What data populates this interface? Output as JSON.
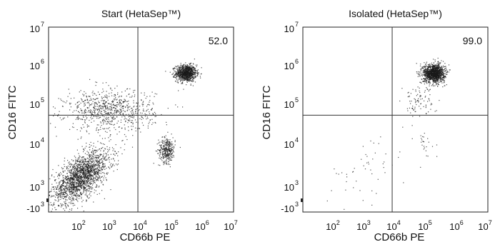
{
  "chart_data": [
    {
      "type": "scatter",
      "title": "Start (HetaSep™)",
      "xlabel": "CD66b PE",
      "ylabel": "CD16 FITC",
      "x_scale": "biexponential",
      "y_scale": "biexponential",
      "x_ticks": [
        {
          "base": "10",
          "exp": "2"
        },
        {
          "base": "10",
          "exp": "3"
        },
        {
          "base": "10",
          "exp": "4"
        },
        {
          "base": "10",
          "exp": "5"
        },
        {
          "base": "10",
          "exp": "6"
        },
        {
          "base": "10",
          "exp": "7"
        }
      ],
      "y_ticks": [
        {
          "base": "-10",
          "exp": "3"
        },
        {
          "base": "10",
          "exp": "3"
        },
        {
          "base": "10",
          "exp": "4"
        },
        {
          "base": "10",
          "exp": "5"
        },
        {
          "base": "10",
          "exp": "6"
        },
        {
          "base": "10",
          "exp": "7"
        }
      ],
      "xlim_log10": [
        1.2,
        7
      ],
      "ylim_log10": [
        2.55,
        7
      ],
      "gate": {
        "x_log10": 4.0,
        "y_log10": 4.88
      },
      "quadrant_label": "52.0",
      "populations": [
        {
          "x_log10": 5.5,
          "y_log10": 5.9,
          "spread": [
            0.16,
            0.1
          ],
          "count": 1000
        },
        {
          "x_log10": 4.9,
          "y_log10": 4.05,
          "spread": [
            0.13,
            0.15
          ],
          "count": 330
        },
        {
          "x_log10": 2.2,
          "y_log10": 3.4,
          "spread": [
            0.45,
            0.25
          ],
          "count": 1900
        },
        {
          "x_log10": 3.1,
          "y_log10": 5.0,
          "spread": [
            0.7,
            0.25
          ],
          "count": 800
        }
      ]
    },
    {
      "type": "scatter",
      "title": "Isolated (HetaSep™)",
      "xlabel": "CD66b PE",
      "ylabel": "CD16 FITC",
      "x_scale": "biexponential",
      "y_scale": "biexponential",
      "x_ticks": [
        {
          "base": "10",
          "exp": "2"
        },
        {
          "base": "10",
          "exp": "3"
        },
        {
          "base": "10",
          "exp": "4"
        },
        {
          "base": "10",
          "exp": "5"
        },
        {
          "base": "10",
          "exp": "6"
        },
        {
          "base": "10",
          "exp": "7"
        }
      ],
      "y_ticks": [
        {
          "base": "-10",
          "exp": "3"
        },
        {
          "base": "10",
          "exp": "3"
        },
        {
          "base": "10",
          "exp": "4"
        },
        {
          "base": "10",
          "exp": "5"
        },
        {
          "base": "10",
          "exp": "6"
        },
        {
          "base": "10",
          "exp": "7"
        }
      ],
      "xlim_log10": [
        1.2,
        7
      ],
      "ylim_log10": [
        2.55,
        7
      ],
      "gate": {
        "x_log10": 4.0,
        "y_log10": 4.88
      },
      "quadrant_label": "99.0",
      "populations": [
        {
          "x_log10": 5.3,
          "y_log10": 5.9,
          "spread": [
            0.17,
            0.11
          ],
          "count": 1300
        },
        {
          "x_log10": 4.8,
          "y_log10": 5.25,
          "spread": [
            0.25,
            0.2
          ],
          "count": 90
        },
        {
          "x_log10": 5.0,
          "y_log10": 4.2,
          "spread": [
            0.18,
            0.18
          ],
          "count": 25
        },
        {
          "x_log10": 3.1,
          "y_log10": 3.5,
          "spread": [
            0.7,
            0.45
          ],
          "count": 50
        }
      ]
    }
  ]
}
